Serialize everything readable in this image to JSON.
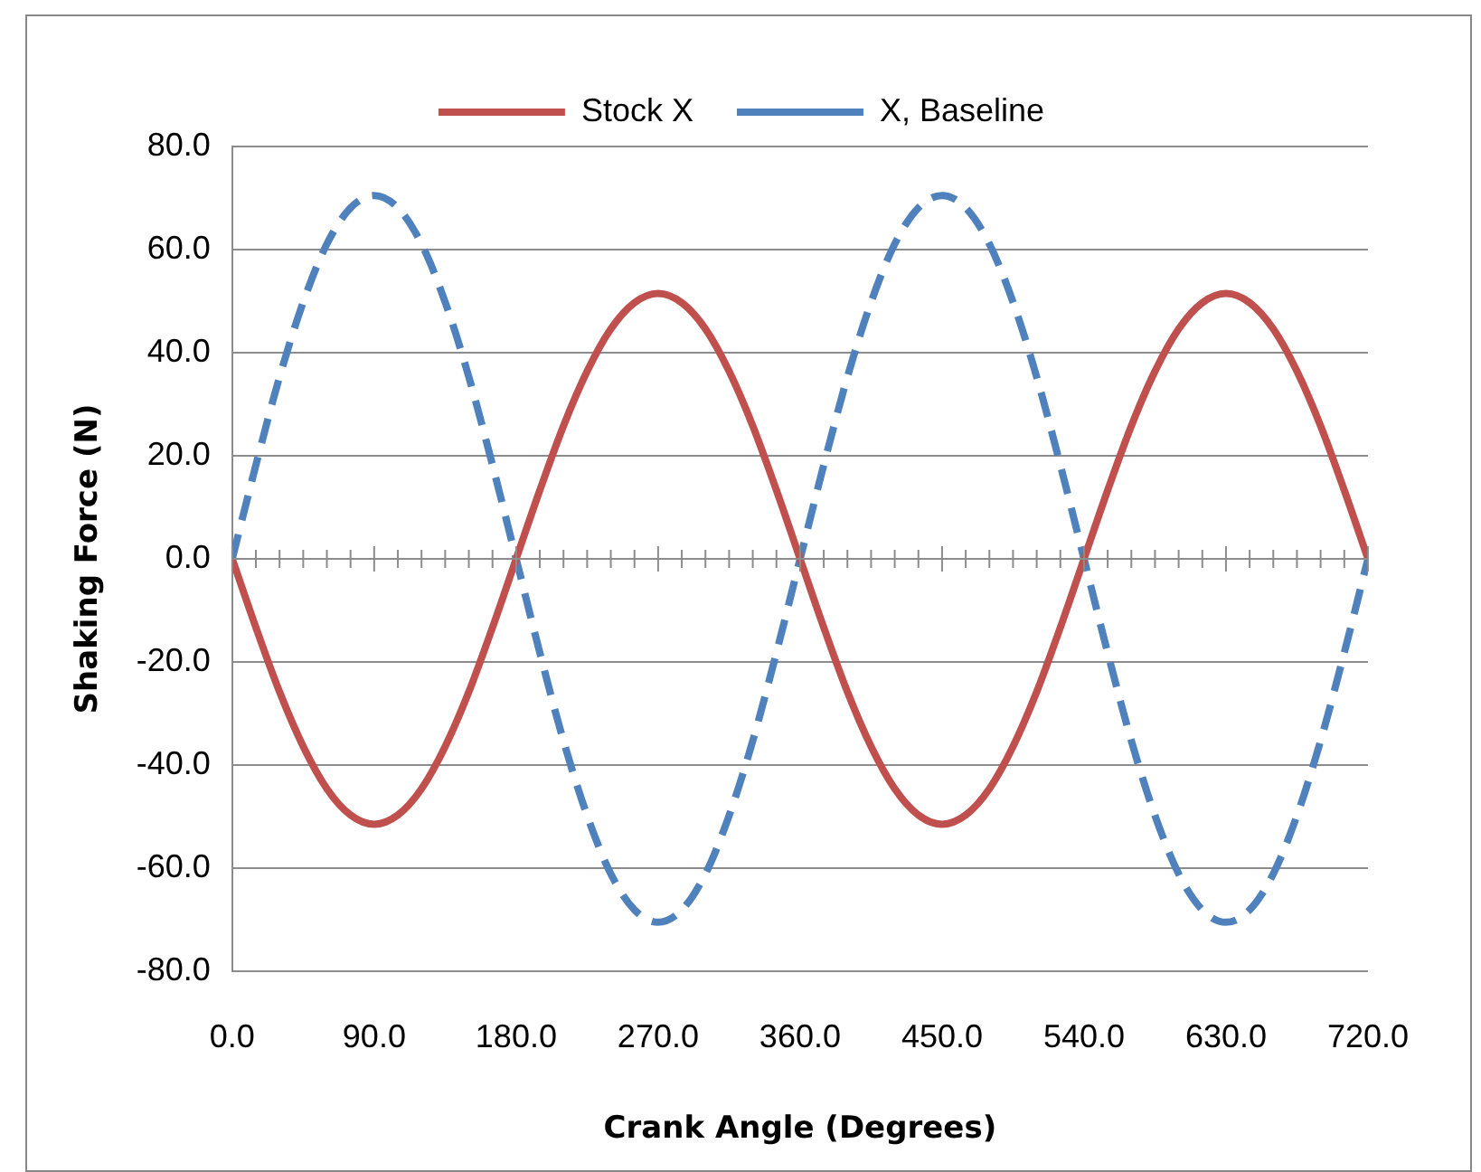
{
  "chart_data": {
    "type": "line",
    "xlabel": "Crank Angle (Degrees)",
    "ylabel": "Shaking Force (N)",
    "x": [
      0,
      15,
      30,
      45,
      60,
      75,
      90,
      105,
      120,
      135,
      150,
      165,
      180,
      195,
      210,
      225,
      240,
      255,
      270,
      285,
      300,
      315,
      330,
      345,
      360,
      375,
      390,
      405,
      420,
      435,
      450,
      465,
      480,
      495,
      510,
      525,
      540,
      555,
      570,
      585,
      600,
      615,
      630,
      645,
      660,
      675,
      690,
      705,
      720
    ],
    "series": [
      {
        "name": "Stock X",
        "color": "#c0504d",
        "line_style": "solid",
        "values": [
          0,
          -13.3,
          -25.8,
          -36.4,
          -44.6,
          -49.7,
          -51.5,
          -49.7,
          -44.6,
          -36.4,
          -25.8,
          -13.3,
          0,
          13.3,
          25.8,
          36.4,
          44.6,
          49.7,
          51.5,
          49.7,
          44.6,
          36.4,
          25.8,
          13.3,
          0,
          -13.3,
          -25.8,
          -36.4,
          -44.6,
          -49.7,
          -51.5,
          -49.7,
          -44.6,
          -36.4,
          -25.8,
          -13.3,
          0,
          13.3,
          25.8,
          36.4,
          44.6,
          49.7,
          51.5,
          49.7,
          44.6,
          36.4,
          25.8,
          13.3,
          0
        ]
      },
      {
        "name": "X, Baseline",
        "color": "#4f81bd",
        "line_style": "dashed",
        "values": [
          0,
          18.2,
          35.3,
          49.8,
          61.1,
          68.1,
          70.5,
          68.1,
          61.1,
          49.8,
          35.3,
          18.2,
          0,
          -18.2,
          -35.3,
          -49.8,
          -61.1,
          -68.1,
          -70.5,
          -68.1,
          -61.1,
          -49.8,
          -35.3,
          -18.2,
          0,
          18.2,
          35.3,
          49.8,
          61.1,
          68.1,
          70.5,
          68.1,
          61.1,
          49.8,
          35.3,
          18.2,
          0,
          -18.2,
          -35.3,
          -49.8,
          -61.1,
          -68.1,
          -70.5,
          -68.1,
          -61.1,
          -49.8,
          -35.3,
          -18.2,
          0
        ]
      }
    ],
    "xlim": [
      0,
      720
    ],
    "xticks": [
      {
        "value": 0,
        "label": "0.0"
      },
      {
        "value": 90,
        "label": "90.0"
      },
      {
        "value": 180,
        "label": "180.0"
      },
      {
        "value": 270,
        "label": "270.0"
      },
      {
        "value": 360,
        "label": "360.0"
      },
      {
        "value": 450,
        "label": "450.0"
      },
      {
        "value": 540,
        "label": "540.0"
      },
      {
        "value": 630,
        "label": "630.0"
      },
      {
        "value": 720,
        "label": "720.0"
      }
    ],
    "ylim": [
      -80,
      80
    ],
    "yticks": [
      {
        "value": -80,
        "label": "-80.0"
      },
      {
        "value": -60,
        "label": "-60.0"
      },
      {
        "value": -40,
        "label": "-40.0"
      },
      {
        "value": -20,
        "label": "-20.0"
      },
      {
        "value": 0,
        "label": "0.0"
      },
      {
        "value": 20,
        "label": "20.0"
      },
      {
        "value": 40,
        "label": "40.0"
      },
      {
        "value": 60,
        "label": "60.0"
      },
      {
        "value": 80,
        "label": "80.0"
      }
    ],
    "grid": "y",
    "legend": "top",
    "marker": "none"
  }
}
